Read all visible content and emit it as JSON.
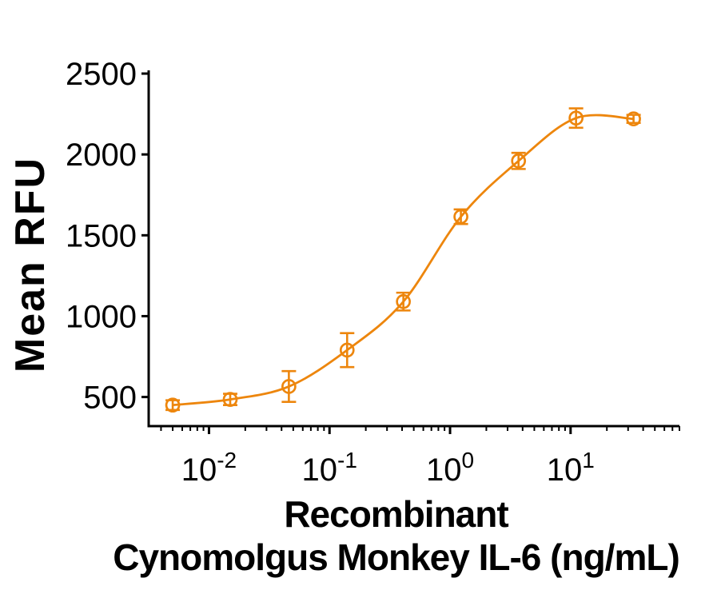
{
  "figure": {
    "background": "#ffffff",
    "accent_color": "#ED860D",
    "axis_color": "#000000"
  },
  "chart_data": {
    "type": "scatter",
    "title": "",
    "ylabel": "Mean RFU",
    "xlabel_lines": [
      "Recombinant",
      "Cynomolgus Monkey IL-6 (ng/mL)"
    ],
    "x_scale": "log",
    "y_scale": "linear",
    "xlim": [
      0.00316,
      80
    ],
    "ylim": [
      320,
      2520
    ],
    "yticks": [
      500,
      1000,
      1500,
      2000,
      2500
    ],
    "xtick_base": "10",
    "xtick_exponents": [
      -2,
      -1,
      0,
      1
    ],
    "grid": false,
    "legend": false,
    "series": [
      {
        "marker": "open-circle",
        "color": "#ED860D",
        "fit_curve": "sigmoid",
        "x": [
          0.005,
          0.015,
          0.046,
          0.14,
          0.41,
          1.23,
          3.7,
          11.1,
          33.3
        ],
        "y": [
          450,
          485,
          565,
          790,
          1090,
          1615,
          1960,
          2225,
          2220
        ],
        "y_error": [
          30,
          35,
          95,
          105,
          55,
          45,
          50,
          60,
          25
        ]
      }
    ]
  }
}
